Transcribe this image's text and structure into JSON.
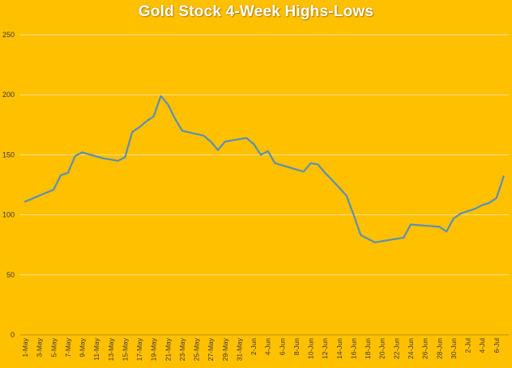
{
  "chart_data": {
    "type": "line",
    "title": "Gold Stock 4-Week Highs-Lows",
    "xlabel": "",
    "ylabel": "",
    "ylim": [
      0,
      250
    ],
    "yticks": [
      0,
      50,
      100,
      150,
      200,
      250
    ],
    "grid": true,
    "legend": "none",
    "x_tick_labels": [
      "1-May",
      "3-May",
      "5-May",
      "7-May",
      "9-May",
      "11-May",
      "13-May",
      "15-May",
      "17-May",
      "19-May",
      "21-May",
      "23-May",
      "25-May",
      "27-May",
      "29-May",
      "31-May",
      "2-Jun",
      "4-Jun",
      "6-Jun",
      "8-Jun",
      "10-Jun",
      "12-Jun",
      "14-Jun",
      "16-Jun",
      "18-Jun",
      "20-Jun",
      "22-Jun",
      "24-Jun",
      "26-Jun",
      "28-Jun",
      "30-Jun",
      "2-Jul",
      "4-Jul",
      "6-Jul"
    ],
    "x": [
      "1-May",
      "5-May",
      "6-May",
      "7-May",
      "8-May",
      "9-May",
      "12-May",
      "13-May",
      "14-May",
      "15-May",
      "16-May",
      "17-May",
      "18-May",
      "19-May",
      "20-May",
      "21-May",
      "22-May",
      "23-May",
      "26-May",
      "27-May",
      "28-May",
      "29-May",
      "30-May",
      "1-Jun",
      "2-Jun",
      "3-Jun",
      "4-Jun",
      "5-Jun",
      "9-Jun",
      "10-Jun",
      "11-Jun",
      "12-Jun",
      "13-Jun",
      "15-Jun",
      "16-Jun",
      "17-Jun",
      "18-Jun",
      "19-Jun",
      "20-Jun",
      "22-Jun",
      "23-Jun",
      "24-Jun",
      "26-Jun",
      "28-Jun",
      "29-Jun",
      "30-Jun",
      "1-Jul",
      "2-Jul",
      "3-Jul",
      "4-Jul",
      "5-Jul",
      "6-Jul",
      "7-Jul"
    ],
    "series": [
      {
        "values": [
          111,
          121,
          133,
          135,
          149,
          152,
          147,
          146,
          145,
          148,
          169,
          173,
          178,
          182,
          199,
          192,
          180,
          170,
          166,
          161,
          154,
          161,
          162,
          164,
          159,
          150,
          153,
          143,
          136,
          143,
          142,
          135,
          129,
          116,
          100,
          83,
          80,
          77,
          78,
          80,
          81,
          92,
          91,
          90,
          86,
          97,
          101,
          103,
          105,
          108,
          110,
          114,
          132
        ]
      }
    ]
  },
  "colors": {
    "background": "#FFC000",
    "line": "#5B8FB3",
    "grid": "#FFE28A",
    "axis": "#BF9000",
    "title": "#FFFFFF"
  }
}
